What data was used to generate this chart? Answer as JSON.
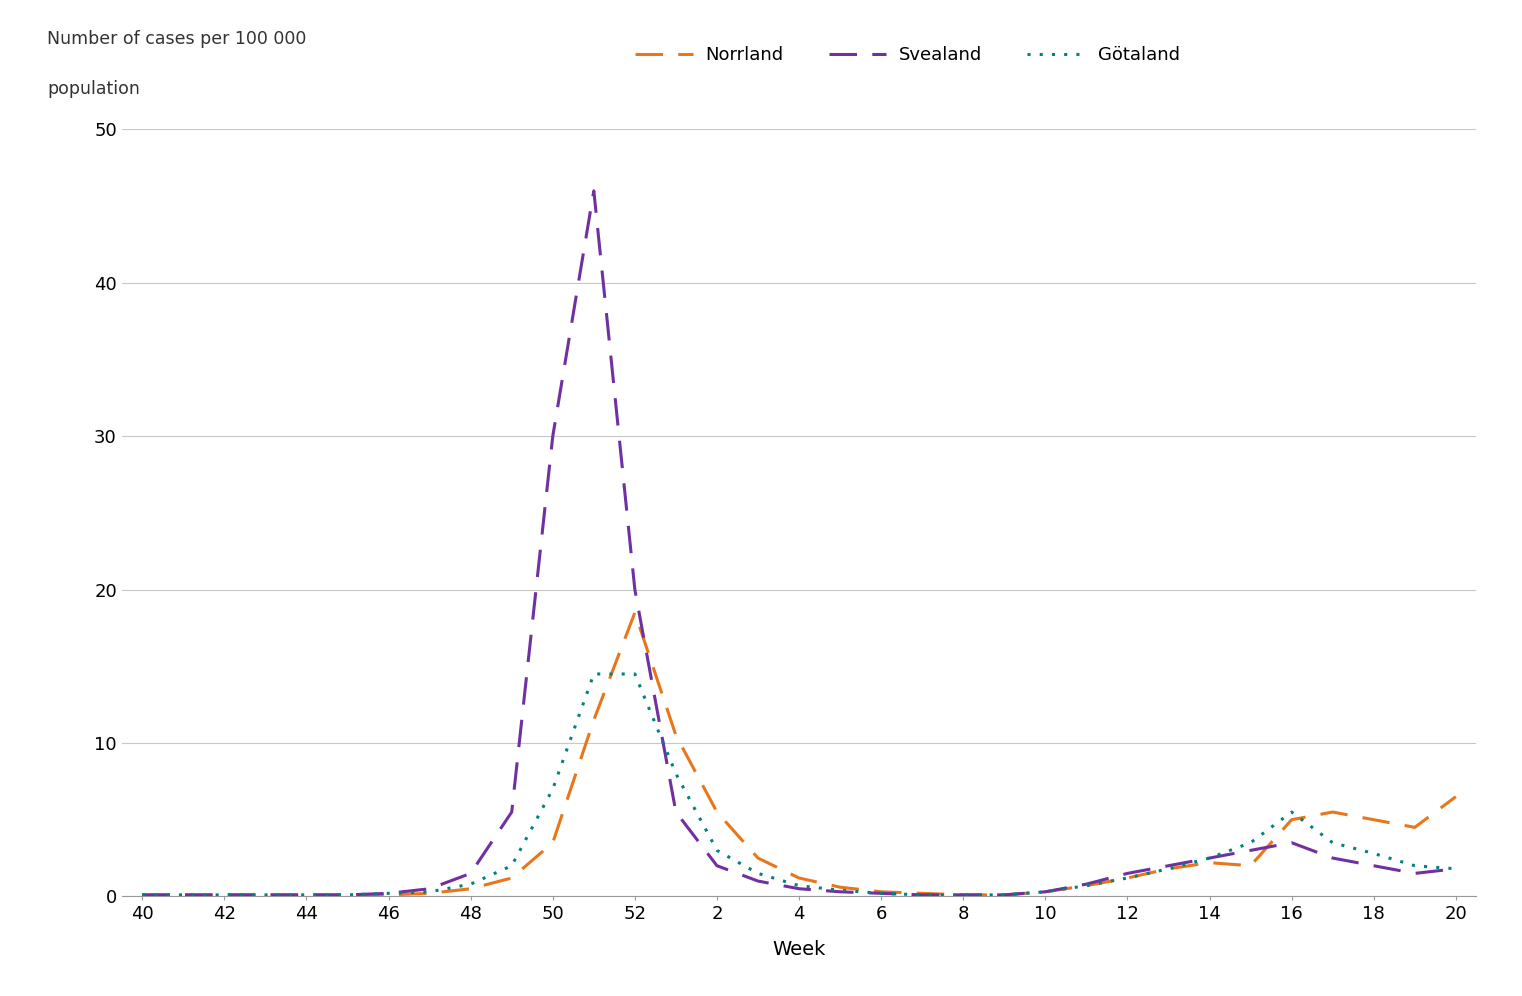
{
  "ylabel_line1": "Number of cases per 100 000",
  "ylabel_line2": "population",
  "xlabel": "Week",
  "background_color": "#ffffff",
  "grid_color": "#c8c8c8",
  "ylim": [
    0,
    50
  ],
  "yticks": [
    0,
    10,
    20,
    30,
    40,
    50
  ],
  "x_tick_labels": [
    "40",
    "42",
    "44",
    "46",
    "48",
    "50",
    "52",
    "2",
    "4",
    "6",
    "8",
    "10",
    "12",
    "14",
    "16",
    "18",
    "20"
  ],
  "x_tick_positions": [
    0,
    2,
    4,
    6,
    8,
    10,
    12,
    14,
    16,
    18,
    20,
    22,
    24,
    26,
    28,
    30,
    32
  ],
  "xlim": [
    -0.5,
    32.5
  ],
  "norrland_color": "#E8761A",
  "svealand_color": "#7030A0",
  "gotaland_color": "#00837F",
  "legend_labels": [
    "Norrland",
    "Svealand",
    "Götaland"
  ],
  "norrland_x": [
    0,
    1,
    2,
    3,
    4,
    5,
    6,
    7,
    8,
    9,
    10,
    11,
    12,
    13,
    14,
    15,
    16,
    17,
    18,
    19,
    20,
    21,
    22,
    23,
    24,
    25,
    26,
    27,
    28,
    29,
    30,
    31,
    32
  ],
  "norrland_y": [
    0.1,
    0.1,
    0.1,
    0.1,
    0.1,
    0.1,
    0.1,
    0.2,
    0.5,
    1.2,
    3.5,
    11.5,
    18.5,
    10.5,
    5.5,
    2.5,
    1.2,
    0.6,
    0.3,
    0.2,
    0.1,
    0.1,
    0.3,
    0.7,
    1.2,
    1.8,
    2.2,
    2.0,
    5.0,
    5.5,
    5.0,
    4.5,
    6.5
  ],
  "svealand_x": [
    0,
    1,
    2,
    3,
    4,
    5,
    6,
    7,
    8,
    9,
    10,
    11,
    12,
    13,
    14,
    15,
    16,
    17,
    18,
    19,
    20,
    21,
    22,
    23,
    24,
    25,
    26,
    27,
    28,
    29,
    30,
    31,
    32
  ],
  "svealand_y": [
    0.1,
    0.1,
    0.1,
    0.1,
    0.1,
    0.1,
    0.2,
    0.5,
    1.5,
    5.5,
    30.0,
    46.0,
    20.0,
    5.5,
    2.0,
    1.0,
    0.5,
    0.3,
    0.2,
    0.1,
    0.1,
    0.1,
    0.3,
    0.8,
    1.5,
    2.0,
    2.5,
    3.0,
    3.5,
    2.5,
    2.0,
    1.5,
    1.8
  ],
  "gotaland_x": [
    0,
    1,
    2,
    3,
    4,
    5,
    6,
    7,
    8,
    9,
    10,
    11,
    12,
    13,
    14,
    15,
    16,
    17,
    18,
    19,
    20,
    21,
    22,
    23,
    24,
    25,
    26,
    27,
    28,
    29,
    30,
    31,
    32
  ],
  "gotaland_y": [
    0.1,
    0.1,
    0.1,
    0.1,
    0.1,
    0.1,
    0.2,
    0.3,
    0.8,
    2.0,
    7.0,
    14.5,
    14.5,
    8.0,
    3.0,
    1.5,
    0.7,
    0.4,
    0.2,
    0.1,
    0.1,
    0.1,
    0.3,
    0.7,
    1.2,
    1.8,
    2.5,
    3.5,
    5.5,
    3.5,
    2.8,
    2.0,
    1.8
  ]
}
